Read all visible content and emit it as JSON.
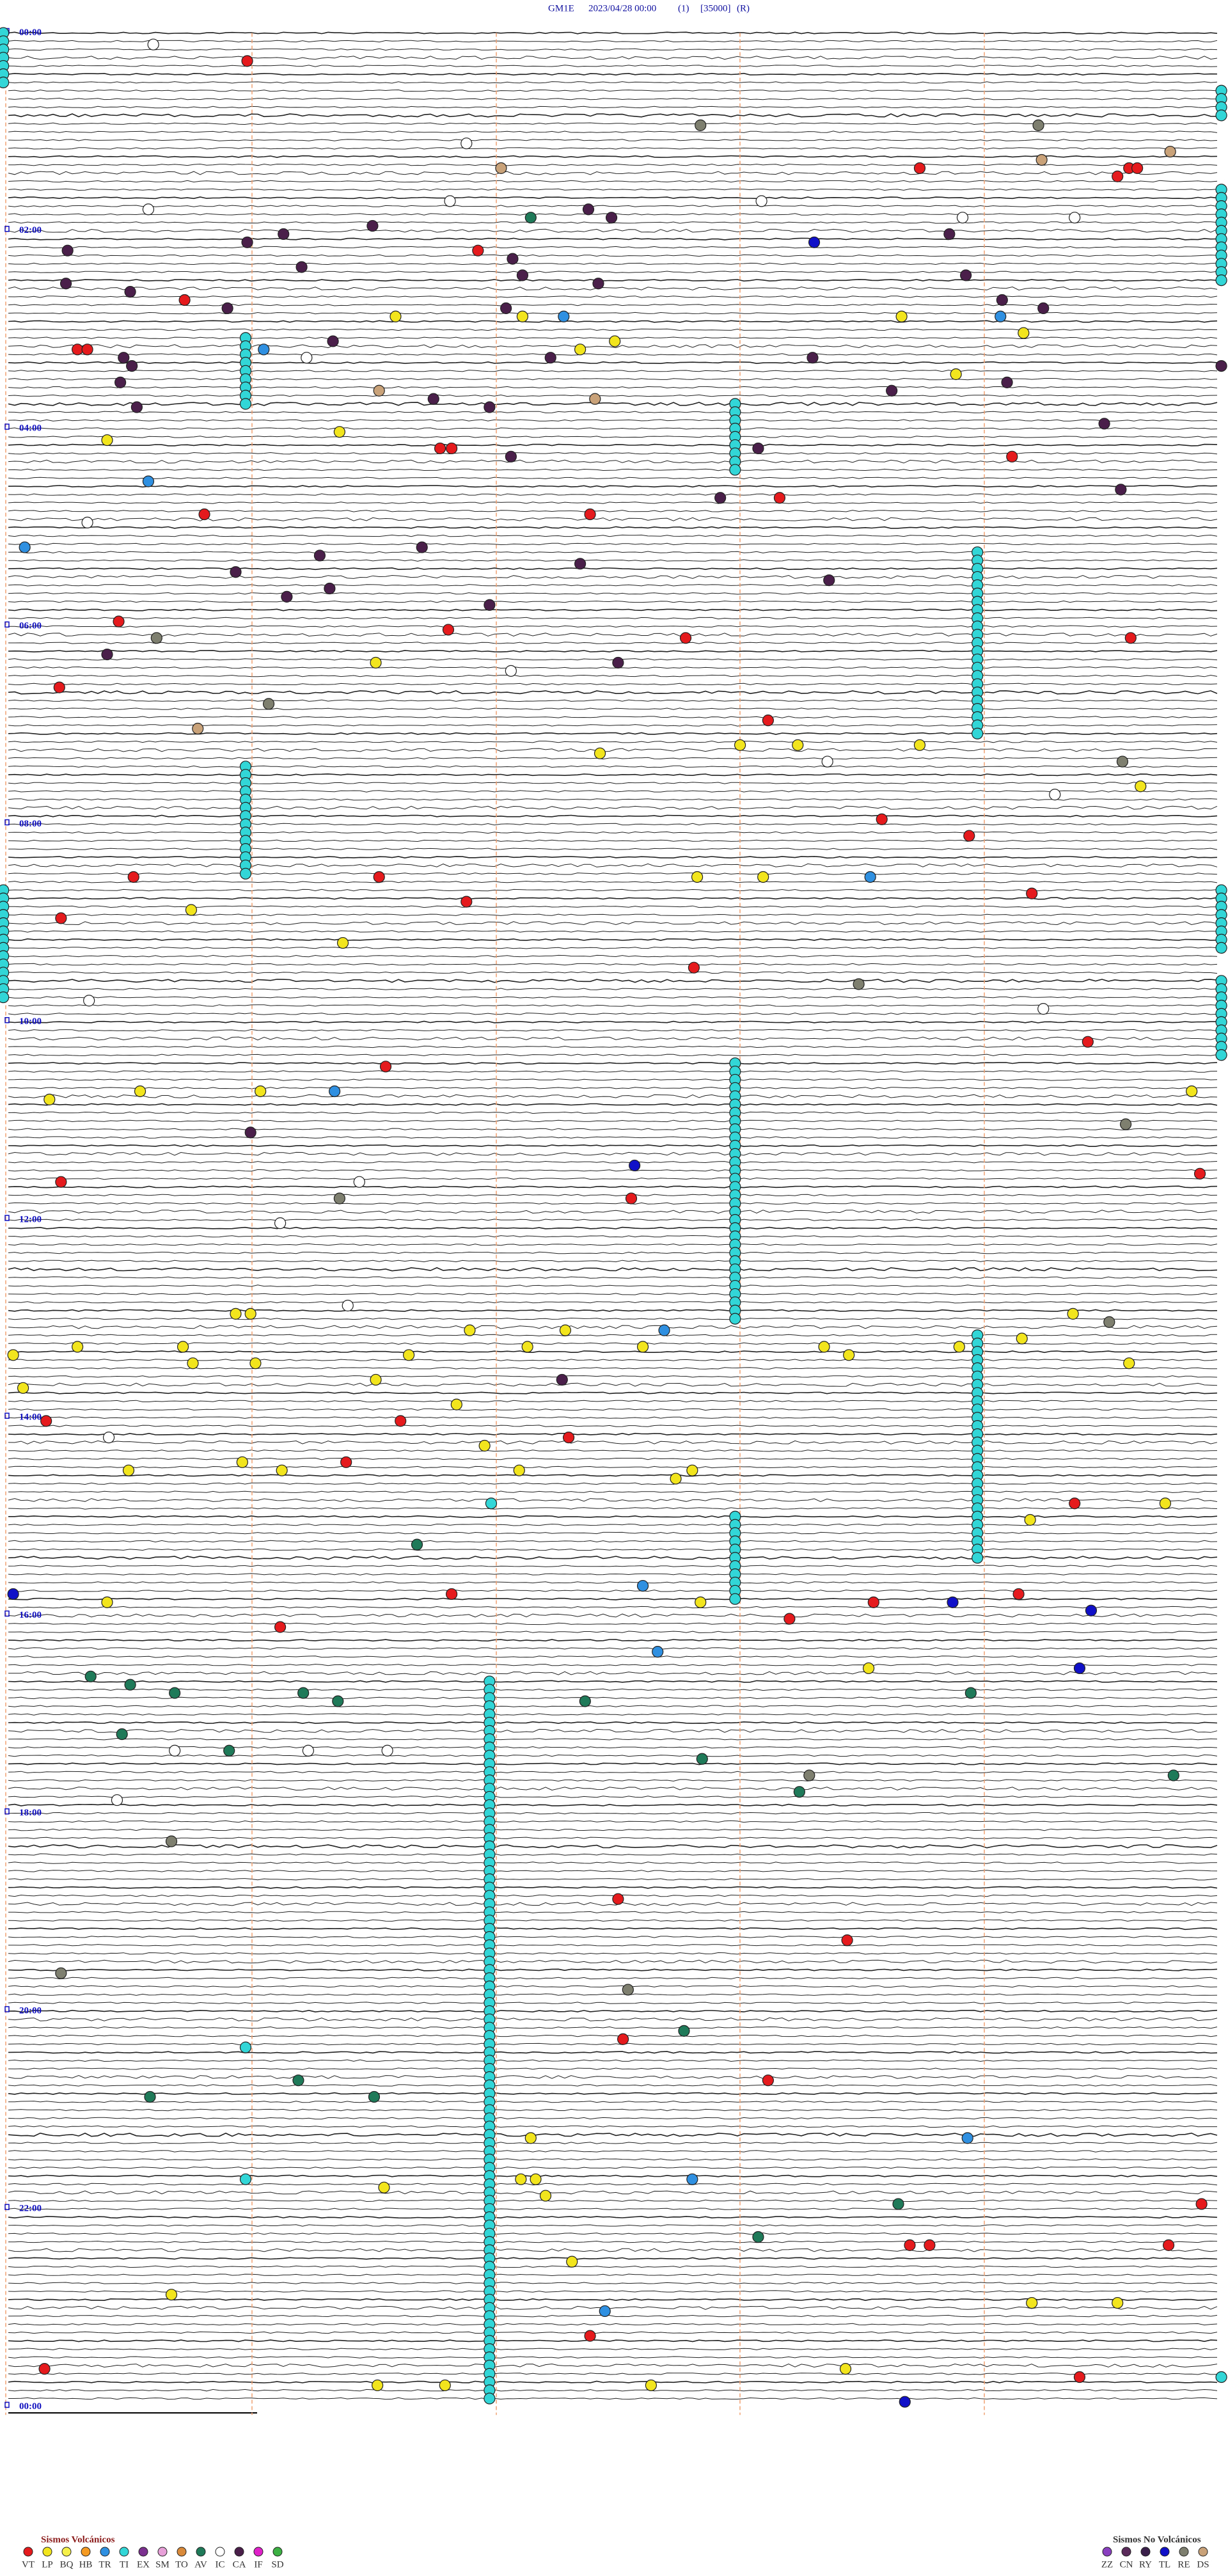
{
  "header": {
    "station": "GM1E",
    "datetime": "2023/04/28 00:00",
    "channel": "(1)",
    "scale": "[35000]",
    "mode": "(R)"
  },
  "hour_labels": [
    "00:00",
    "02:00",
    "04:00",
    "06:00",
    "08:00",
    "10:00",
    "12:00",
    "14:00",
    "16:00",
    "18:00",
    "20:00",
    "22:00",
    "00:00"
  ],
  "legend_volcanic": {
    "title": "Sismos Volcánicos",
    "items": [
      {
        "code": "VT",
        "color": "#e41a1c"
      },
      {
        "code": "LP",
        "color": "#f2e51e"
      },
      {
        "code": "BQ",
        "color": "#f6f04a"
      },
      {
        "code": "HB",
        "color": "#f59a23"
      },
      {
        "code": "TR",
        "color": "#2f8fe0"
      },
      {
        "code": "TI",
        "color": "#33d6d6"
      },
      {
        "code": "EX",
        "color": "#7b2f8f"
      },
      {
        "code": "SM",
        "color": "#e7a0d8"
      },
      {
        "code": "TO",
        "color": "#d98a3a"
      },
      {
        "code": "AV",
        "color": "#1f7a5a"
      },
      {
        "code": "IC",
        "color": "#ffffff"
      },
      {
        "code": "CA",
        "color": "#4a1f4a"
      },
      {
        "code": "IF",
        "color": "#e020c8"
      },
      {
        "code": "SD",
        "color": "#3cb043"
      }
    ]
  },
  "legend_non_volcanic": {
    "title": "Sismos No Volcánicos",
    "items": [
      {
        "code": "ZZ",
        "color": "#8a3fc0"
      },
      {
        "code": "CN",
        "color": "#5a2a5a"
      },
      {
        "code": "RY",
        "color": "#3a1f4a"
      },
      {
        "code": "TL",
        "color": "#1010c8"
      },
      {
        "code": "RE",
        "color": "#7f7f6f"
      },
      {
        "code": "DS",
        "color": "#c9a27a"
      }
    ]
  }
}
